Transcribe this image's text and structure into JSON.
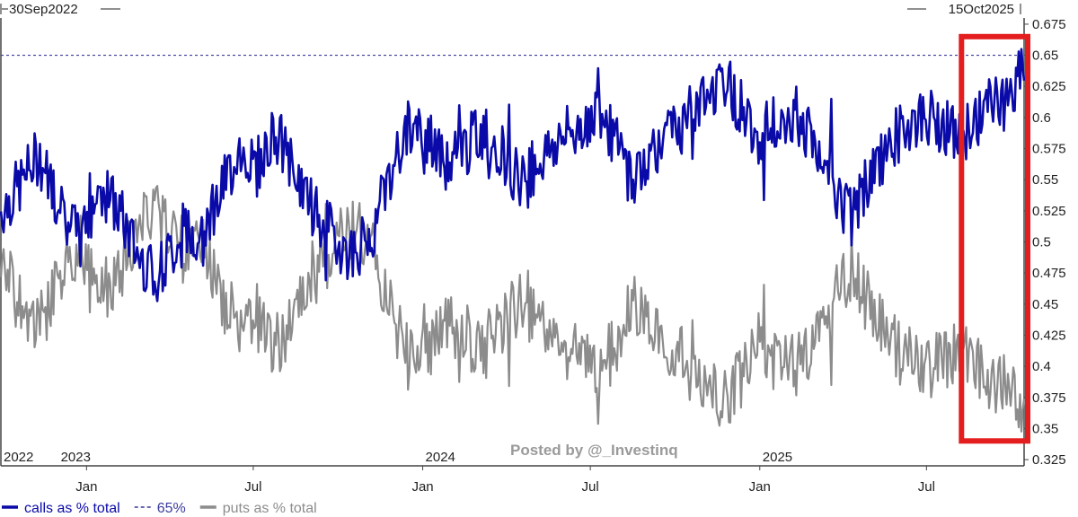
{
  "colors": {
    "calls": "#0a0aa8",
    "puts": "#8c8c8c",
    "threshold": "#3a3a9c",
    "highlight": "#e41e1e",
    "axis": "#444444",
    "text": "#222222",
    "watermark": "#9a9a9a"
  },
  "header": {
    "start_date": "30Sep2022",
    "end_date": "15Oct2025"
  },
  "watermark": "Posted by @_Investinq",
  "chart_data": {
    "type": "line",
    "x_range": [
      "2022-09-30",
      "2025-10-15"
    ],
    "ylim": [
      0.32,
      0.68
    ],
    "y_ticks": [
      0.325,
      0.35,
      0.375,
      0.4,
      0.425,
      0.45,
      0.475,
      0.5,
      0.525,
      0.55,
      0.575,
      0.6,
      0.625,
      0.65,
      0.675
    ],
    "y_tick_labels": [
      "0.325",
      "0.35",
      "0.375",
      "0.4",
      "0.425",
      "0.45",
      "0.475",
      "0.5",
      "0.525",
      "0.55",
      "0.575",
      "0.6",
      "0.625",
      "0.65",
      "0.675"
    ],
    "x_ticks": [
      {
        "date": "2023-01-01",
        "label": "Jan"
      },
      {
        "date": "2023-07-01",
        "label": "Jul"
      },
      {
        "date": "2024-01-01",
        "label": "Jan"
      },
      {
        "date": "2024-07-01",
        "label": "Jul"
      },
      {
        "date": "2025-01-01",
        "label": "Jan"
      },
      {
        "date": "2025-07-01",
        "label": "Jul"
      }
    ],
    "year_labels": [
      {
        "date": "2022-09-30",
        "label": "2022"
      },
      {
        "date": "2022-12-01",
        "label": "2023"
      },
      {
        "date": "2024-01-01",
        "label": "2024"
      },
      {
        "date": "2025-01-01",
        "label": "2025"
      }
    ],
    "reference_lines": [
      {
        "value": 0.65,
        "style": "dashed"
      }
    ],
    "legend": {
      "placement": "bottom-left",
      "items": [
        {
          "label": "calls as % total",
          "style": "solid",
          "color": "#0a0aa8"
        },
        {
          "label": "65%",
          "style": "dashed",
          "color": "#3a3a9c"
        },
        {
          "label": "puts as % total",
          "style": "solid",
          "color": "#8c8c8c"
        }
      ]
    },
    "highlight_box": {
      "x_range": [
        "2025-08-08",
        "2025-10-15"
      ],
      "y_range": [
        0.34,
        0.665
      ]
    },
    "series": [
      {
        "name": "calls as % total",
        "anchors": [
          {
            "x": "2022-09-30",
            "y": 0.525
          },
          {
            "x": "2022-10-20",
            "y": 0.545
          },
          {
            "x": "2022-11-10",
            "y": 0.57
          },
          {
            "x": "2022-12-05",
            "y": 0.525
          },
          {
            "x": "2022-12-25",
            "y": 0.5
          },
          {
            "x": "2023-01-15",
            "y": 0.545
          },
          {
            "x": "2023-02-05",
            "y": 0.525
          },
          {
            "x": "2023-02-25",
            "y": 0.49
          },
          {
            "x": "2023-03-20",
            "y": 0.475
          },
          {
            "x": "2023-04-10",
            "y": 0.5
          },
          {
            "x": "2023-05-01",
            "y": 0.51
          },
          {
            "x": "2023-05-25",
            "y": 0.535
          },
          {
            "x": "2023-06-15",
            "y": 0.575
          },
          {
            "x": "2023-07-05",
            "y": 0.56
          },
          {
            "x": "2023-07-25",
            "y": 0.59
          },
          {
            "x": "2023-08-15",
            "y": 0.555
          },
          {
            "x": "2023-09-05",
            "y": 0.525
          },
          {
            "x": "2023-09-25",
            "y": 0.505
          },
          {
            "x": "2023-10-15",
            "y": 0.49
          },
          {
            "x": "2023-11-05",
            "y": 0.505
          },
          {
            "x": "2023-11-25",
            "y": 0.55
          },
          {
            "x": "2023-12-15",
            "y": 0.59
          },
          {
            "x": "2024-01-05",
            "y": 0.585
          },
          {
            "x": "2024-01-25",
            "y": 0.56
          },
          {
            "x": "2024-02-15",
            "y": 0.575
          },
          {
            "x": "2024-03-05",
            "y": 0.59
          },
          {
            "x": "2024-03-25",
            "y": 0.575
          },
          {
            "x": "2024-04-15",
            "y": 0.55
          },
          {
            "x": "2024-05-05",
            "y": 0.565
          },
          {
            "x": "2024-05-25",
            "y": 0.58
          },
          {
            "x": "2024-06-15",
            "y": 0.59
          },
          {
            "x": "2024-07-05",
            "y": 0.605
          },
          {
            "x": "2024-07-25",
            "y": 0.585
          },
          {
            "x": "2024-08-15",
            "y": 0.55
          },
          {
            "x": "2024-09-05",
            "y": 0.575
          },
          {
            "x": "2024-09-25",
            "y": 0.585
          },
          {
            "x": "2024-10-15",
            "y": 0.6
          },
          {
            "x": "2024-11-05",
            "y": 0.615
          },
          {
            "x": "2024-11-20",
            "y": 0.635
          },
          {
            "x": "2024-12-10",
            "y": 0.61
          },
          {
            "x": "2025-01-01",
            "y": 0.585
          },
          {
            "x": "2025-01-20",
            "y": 0.6
          },
          {
            "x": "2025-02-10",
            "y": 0.605
          },
          {
            "x": "2025-03-01",
            "y": 0.575
          },
          {
            "x": "2025-03-20",
            "y": 0.55
          },
          {
            "x": "2025-04-10",
            "y": 0.515
          },
          {
            "x": "2025-04-30",
            "y": 0.55
          },
          {
            "x": "2025-05-20",
            "y": 0.575
          },
          {
            "x": "2025-06-10",
            "y": 0.595
          },
          {
            "x": "2025-07-01",
            "y": 0.6
          },
          {
            "x": "2025-07-20",
            "y": 0.595
          },
          {
            "x": "2025-08-05",
            "y": 0.58
          },
          {
            "x": "2025-08-25",
            "y": 0.6
          },
          {
            "x": "2025-09-15",
            "y": 0.615
          },
          {
            "x": "2025-10-01",
            "y": 0.61
          },
          {
            "x": "2025-10-15",
            "y": 0.65
          }
        ]
      },
      {
        "name": "puts as % total",
        "anchors": [
          {
            "x": "2022-09-30",
            "y": 0.475
          },
          {
            "x": "2022-10-20",
            "y": 0.455
          },
          {
            "x": "2022-11-10",
            "y": 0.43
          },
          {
            "x": "2022-12-05",
            "y": 0.475
          },
          {
            "x": "2022-12-25",
            "y": 0.5
          },
          {
            "x": "2023-01-15",
            "y": 0.455
          },
          {
            "x": "2023-02-05",
            "y": 0.475
          },
          {
            "x": "2023-02-25",
            "y": 0.51
          },
          {
            "x": "2023-03-20",
            "y": 0.525
          },
          {
            "x": "2023-04-10",
            "y": 0.5
          },
          {
            "x": "2023-05-01",
            "y": 0.49
          },
          {
            "x": "2023-05-25",
            "y": 0.465
          },
          {
            "x": "2023-06-15",
            "y": 0.425
          },
          {
            "x": "2023-07-05",
            "y": 0.44
          },
          {
            "x": "2023-07-25",
            "y": 0.41
          },
          {
            "x": "2023-08-15",
            "y": 0.445
          },
          {
            "x": "2023-09-05",
            "y": 0.475
          },
          {
            "x": "2023-09-25",
            "y": 0.495
          },
          {
            "x": "2023-10-15",
            "y": 0.51
          },
          {
            "x": "2023-11-05",
            "y": 0.495
          },
          {
            "x": "2023-11-25",
            "y": 0.45
          },
          {
            "x": "2023-12-15",
            "y": 0.41
          },
          {
            "x": "2024-01-05",
            "y": 0.415
          },
          {
            "x": "2024-01-25",
            "y": 0.44
          },
          {
            "x": "2024-02-15",
            "y": 0.425
          },
          {
            "x": "2024-03-05",
            "y": 0.41
          },
          {
            "x": "2024-03-25",
            "y": 0.425
          },
          {
            "x": "2024-04-15",
            "y": 0.45
          },
          {
            "x": "2024-05-05",
            "y": 0.435
          },
          {
            "x": "2024-05-25",
            "y": 0.42
          },
          {
            "x": "2024-06-15",
            "y": 0.41
          },
          {
            "x": "2024-07-05",
            "y": 0.395
          },
          {
            "x": "2024-07-25",
            "y": 0.415
          },
          {
            "x": "2024-08-15",
            "y": 0.45
          },
          {
            "x": "2024-09-05",
            "y": 0.425
          },
          {
            "x": "2024-09-25",
            "y": 0.415
          },
          {
            "x": "2024-10-15",
            "y": 0.4
          },
          {
            "x": "2024-11-05",
            "y": 0.385
          },
          {
            "x": "2024-11-20",
            "y": 0.365
          },
          {
            "x": "2024-12-10",
            "y": 0.39
          },
          {
            "x": "2025-01-01",
            "y": 0.415
          },
          {
            "x": "2025-01-20",
            "y": 0.4
          },
          {
            "x": "2025-02-10",
            "y": 0.395
          },
          {
            "x": "2025-03-01",
            "y": 0.425
          },
          {
            "x": "2025-03-20",
            "y": 0.45
          },
          {
            "x": "2025-04-10",
            "y": 0.485
          },
          {
            "x": "2025-04-30",
            "y": 0.45
          },
          {
            "x": "2025-05-20",
            "y": 0.425
          },
          {
            "x": "2025-06-10",
            "y": 0.405
          },
          {
            "x": "2025-07-01",
            "y": 0.4
          },
          {
            "x": "2025-07-20",
            "y": 0.405
          },
          {
            "x": "2025-08-05",
            "y": 0.42
          },
          {
            "x": "2025-08-25",
            "y": 0.4
          },
          {
            "x": "2025-09-15",
            "y": 0.385
          },
          {
            "x": "2025-10-01",
            "y": 0.39
          },
          {
            "x": "2025-10-15",
            "y": 0.355
          }
        ]
      }
    ]
  }
}
